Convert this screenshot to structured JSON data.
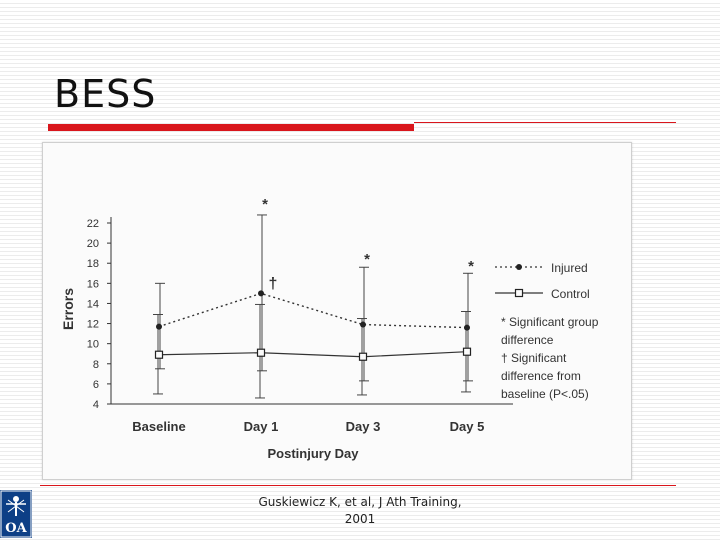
{
  "slide": {
    "title": "BESS",
    "citation_line1": "Guskiewicz K, et al, J Ath Training,",
    "citation_line2": "2001",
    "accent_color": "#d9161c",
    "logo_color": "#0d3f86",
    "logo_text": "OA"
  },
  "chart_data": {
    "type": "line",
    "categories": [
      "Baseline",
      "Day 1",
      "Day 3",
      "Day 5"
    ],
    "xlabel": "Postinjury Day",
    "ylabel": "Errors",
    "ylim": [
      4,
      22
    ],
    "yticks": [
      4,
      6,
      8,
      10,
      12,
      14,
      16,
      18,
      20,
      22
    ],
    "grid": false,
    "legend_placement": "right",
    "series": [
      {
        "name": "Injured",
        "style": "dashed",
        "marker": "filled-circle",
        "values": [
          11.7,
          15.0,
          11.9,
          11.6
        ],
        "error_low": [
          7.5,
          7.3,
          6.3,
          6.3
        ],
        "error_high": [
          16.0,
          22.8,
          17.6,
          17.0
        ]
      },
      {
        "name": "Control",
        "style": "solid",
        "marker": "open-square",
        "values": [
          8.9,
          9.1,
          8.7,
          9.2
        ],
        "error_low": [
          5.0,
          4.6,
          4.9,
          5.2
        ],
        "error_high": [
          12.9,
          13.9,
          12.5,
          13.2
        ]
      }
    ],
    "annotations": [
      {
        "category": "Day 1",
        "text": "*",
        "y": 24.0
      },
      {
        "category": "Day 3",
        "text": "*",
        "y": 18.5
      },
      {
        "category": "Day 5",
        "text": "*",
        "y": 17.8
      },
      {
        "category": "Day 1",
        "text": "†",
        "y": 15.5
      }
    ],
    "legend_notes": [
      "* Significant group",
      "difference",
      "† Significant",
      "difference from",
      "baseline (P<.05)"
    ]
  }
}
